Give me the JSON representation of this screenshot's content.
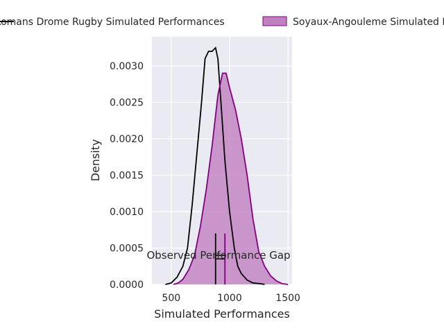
{
  "chart_data": {
    "type": "area",
    "title": "",
    "xlabel": "Simulated Performances",
    "ylabel": "Density",
    "xlim": [
      335,
      1535
    ],
    "ylim": [
      0,
      0.0034
    ],
    "grid": true,
    "background": "#eaeaf2",
    "x_ticks": [
      500,
      1000,
      1500
    ],
    "x_tick_labels": [
      "500",
      "1000",
      "1500"
    ],
    "y_ticks": [
      0,
      0.0005,
      0.001,
      0.0015,
      0.002,
      0.0025,
      0.003
    ],
    "y_tick_labels": [
      "0.0000",
      "0.0005",
      "0.0010",
      "0.0015",
      "0.0020",
      "0.0025",
      "0.0030"
    ],
    "legend_position": "top",
    "series": [
      {
        "name": "Romans Drome Rugby Simulated Performances",
        "legend_label": "Romans Drome Rugby Simulated Performances",
        "color": "#000000",
        "filled": false,
        "x": [
          450,
          500,
          550,
          600,
          640,
          680,
          720,
          760,
          790,
          820,
          850,
          880,
          900,
          930,
          960,
          1000,
          1040,
          1070,
          1100,
          1150,
          1200,
          1260,
          1300
        ],
        "y": [
          0.0,
          2e-05,
          0.0001,
          0.00025,
          0.0005,
          0.0011,
          0.0018,
          0.0025,
          0.0031,
          0.0032,
          0.0032,
          0.00325,
          0.0031,
          0.0024,
          0.0017,
          0.001,
          0.0005,
          0.00025,
          0.00015,
          6e-05,
          2e-05,
          1e-05,
          0.0
        ]
      },
      {
        "name": "Soyaux-Angouleme Simulated Performances",
        "legend_label": "Soyaux-Angouleme Simulated Performances",
        "color": "#800080",
        "fill_color": "#c080c0",
        "filled": true,
        "x": [
          520,
          560,
          600,
          650,
          700,
          750,
          800,
          850,
          900,
          940,
          970,
          1000,
          1050,
          1100,
          1150,
          1200,
          1250,
          1300,
          1350,
          1400,
          1450,
          1500
        ],
        "y": [
          0.0,
          2e-05,
          7e-05,
          0.0002,
          0.0004,
          0.0008,
          0.0013,
          0.0019,
          0.0026,
          0.0029,
          0.0029,
          0.0027,
          0.0024,
          0.002,
          0.0015,
          0.0009,
          0.00045,
          0.00025,
          0.00012,
          5e-05,
          1e-05,
          0.0
        ]
      }
    ],
    "markers": [
      {
        "x": 880,
        "y0": 0,
        "y1": 0.0007,
        "color": "#000000"
      },
      {
        "x": 960,
        "y0": 0,
        "y1": 0.0007,
        "color": "#800080"
      }
    ],
    "gap_bracket": {
      "x0": 880,
      "x1": 960,
      "y_top": 0.0004,
      "y_bottom": 0.00035,
      "color": "#000000"
    },
    "annotation": {
      "text": "Observed Performance Gap",
      "x": 920,
      "y": 0.0004
    }
  }
}
